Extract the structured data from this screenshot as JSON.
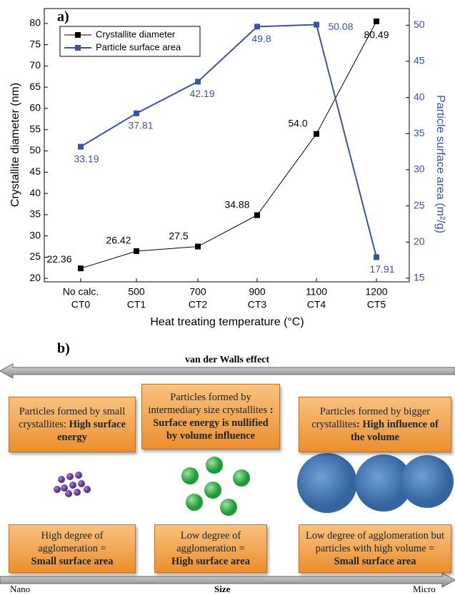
{
  "chart_data": {
    "type": "line",
    "panel_label": "a)",
    "x_label": "Heat treating temperature (°C)",
    "y_label": "Crystallite diameter (nm)",
    "y2_label": "Particle surface area (m²/g)",
    "categories": [
      "No calc.",
      "500",
      "700",
      "900",
      "1100",
      "1200"
    ],
    "category_codes": [
      "CT0",
      "CT1",
      "CT2",
      "CT3",
      "CT4",
      "CT5"
    ],
    "ylim": [
      19.2,
      83.5
    ],
    "yticks": [
      20,
      25,
      30,
      35,
      40,
      45,
      50,
      55,
      60,
      65,
      70,
      75,
      80
    ],
    "y2lim": [
      14.5,
      52.3
    ],
    "y2ticks": [
      15,
      20,
      25,
      30,
      35,
      40,
      45,
      50
    ],
    "legend": "upper left",
    "series": [
      {
        "name": "Crystallite diameter",
        "color": "#000000",
        "values": [
          22.36,
          26.42,
          27.5,
          34.88,
          54.0,
          80.49
        ],
        "value_labels": [
          "22.36",
          "26.42",
          "27.5",
          "34.88",
          "54.0",
          "80.49"
        ]
      },
      {
        "name": "Particle surface area",
        "color": "#3a53a4",
        "axis": "y2",
        "values": [
          33.19,
          37.81,
          42.19,
          49.8,
          50.08,
          17.91
        ],
        "value_labels": [
          "33.19",
          "37.81",
          "42.19",
          "49.8",
          "50.08",
          "17.91"
        ]
      }
    ]
  },
  "diagram": {
    "panel_label": "b)",
    "top_arrow": "van der Walls effect",
    "top_boxes": [
      {
        "normal": "Particles formed by small crystallites:",
        "bold": "High surface energy"
      },
      {
        "normal": "Particles formed by intermediary size crystallites",
        "bold": ": Surface energy is nullified by volume influence"
      },
      {
        "normal": "Particles formed by bigger crystallites",
        "bold": ": High influence of the volume"
      }
    ],
    "bottom_boxes": [
      {
        "normal": "High degree of agglomeration =",
        "bold": "Small surface area"
      },
      {
        "normal": "Low degree of agglomeration =",
        "bold": "High surface area"
      },
      {
        "normal": "Low degree of agglomeration but particles with high volume =",
        "bold": "Small surface area"
      }
    ],
    "bottom_arrow": {
      "left": "Nano",
      "center": "Size",
      "right": "Micro"
    }
  }
}
